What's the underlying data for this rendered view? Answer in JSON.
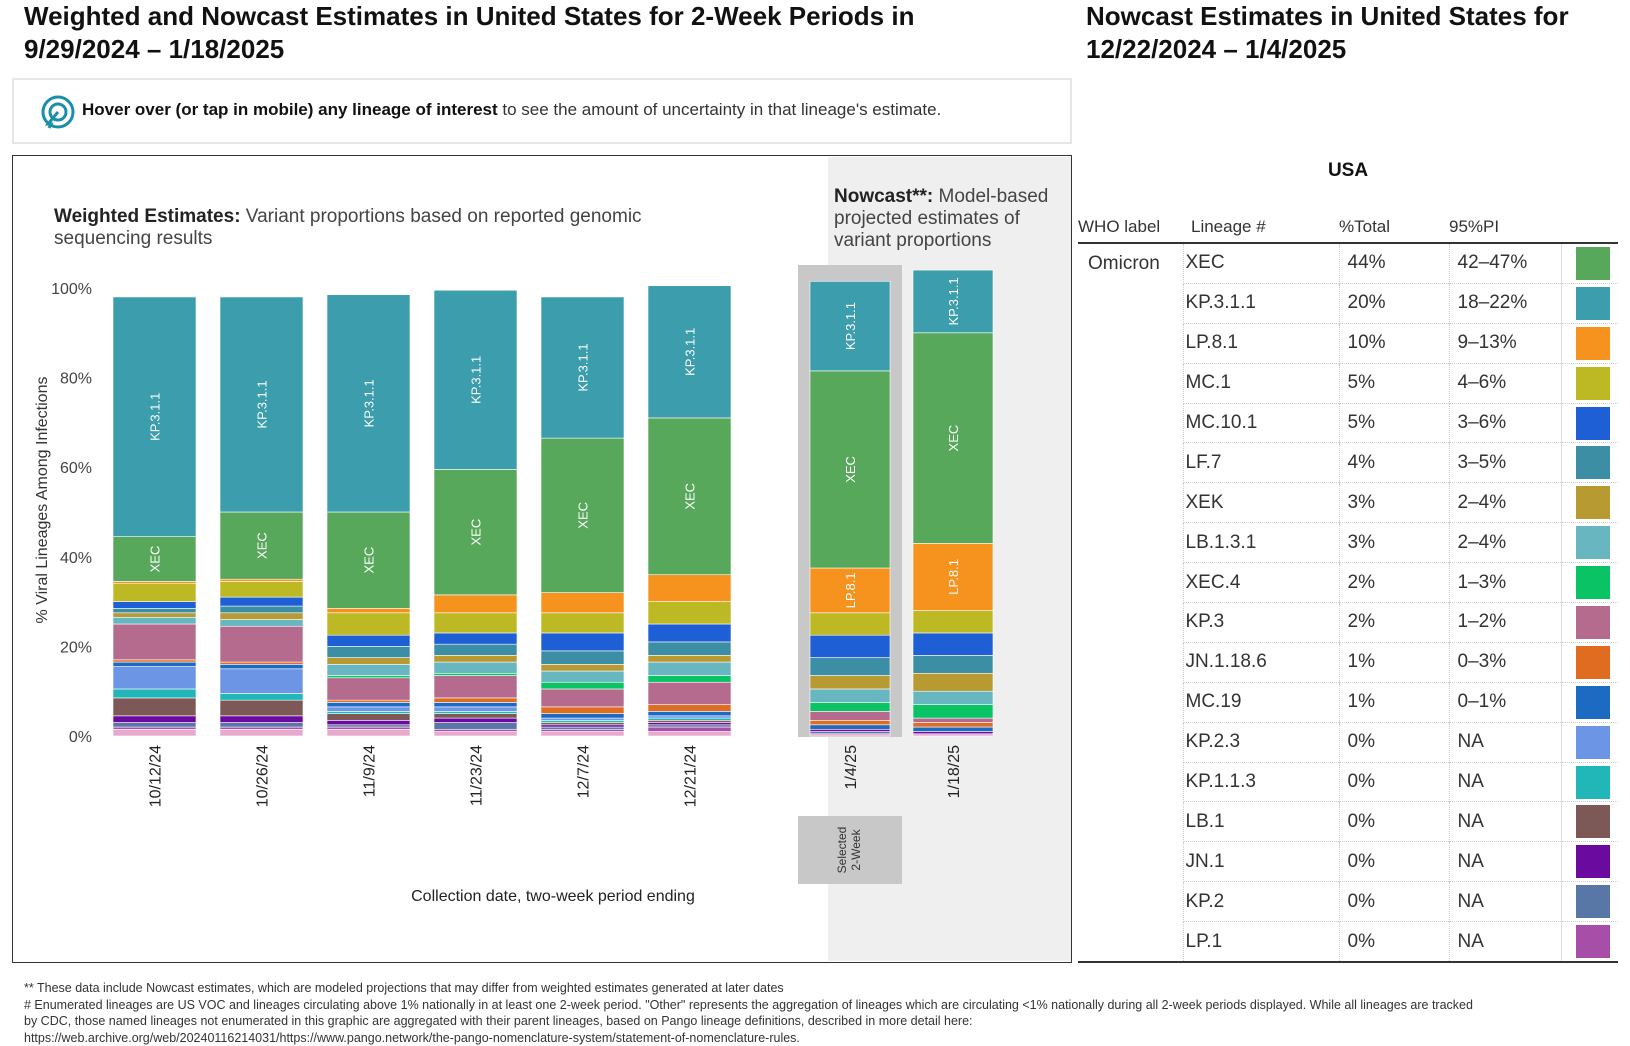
{
  "titles": {
    "left": "Weighted and Nowcast Estimates in United States for 2-Week Periods in 9/29/2024 – 1/18/2025",
    "right": "Nowcast Estimates in United States for 12/22/2024 – 1/4/2025"
  },
  "hover_note": {
    "bold": "Hover over (or tap in mobile) any lineage of interest",
    "rest": " to see the amount of uncertainty in that lineage's estimate."
  },
  "weighted_label": {
    "bold": "Weighted Estimates:",
    "rest": " Variant proportions based on reported genomic sequencing results"
  },
  "nowcast_label": {
    "bold": "Nowcast**:",
    "rest": " Model-based projected estimates of variant proportions"
  },
  "selected_label": "Selected 2-Week",
  "chart_data": {
    "type": "bar",
    "stacked": true,
    "title": "",
    "xlabel": "Collection date, two-week period ending",
    "ylabel": "% Viral Lineages Among Infections",
    "ylim": [
      0,
      100
    ],
    "yticks": [
      "0%",
      "20%",
      "40%",
      "60%",
      "80%",
      "100%"
    ],
    "categories": [
      "10/12/24",
      "10/26/24",
      "11/9/24",
      "11/23/24",
      "12/7/24",
      "12/21/24",
      "1/4/25",
      "1/18/25"
    ],
    "nowcast_categories": [
      "1/4/25",
      "1/18/25"
    ],
    "selected_category": "1/4/25",
    "colors": {
      "XEC": "#57a85b",
      "KP.3.1.1": "#3c9dac",
      "LP.8.1": "#f5931e",
      "MC.1": "#bdb925",
      "MC.10.1": "#1f5fd6",
      "LF.7": "#3b8ea3",
      "XEK": "#b89a33",
      "LB.1.3.1": "#68b7c0",
      "XEC.4": "#09c364",
      "KP.3": "#b56b8e",
      "JN.1.18.6": "#e06c22",
      "MC.19": "#1d6ac2",
      "KP.2.3": "#6d95e6",
      "KP.1.1.3": "#21b7b9",
      "LB.1": "#7c5856",
      "JN.1": "#6b0a9e",
      "KP.2": "#5877a6",
      "LP.1": "#a64ea8",
      "Other": "#e7a9cc"
    },
    "series": [
      {
        "name": "Other",
        "values": [
          1.5,
          1.5,
          1.5,
          1.0,
          1.0,
          1.0,
          0.5,
          0.5
        ]
      },
      {
        "name": "LP.1",
        "values": [
          0.5,
          0.5,
          0.5,
          0.5,
          0.5,
          1.0,
          0.0,
          0.0
        ]
      },
      {
        "name": "KP.2",
        "values": [
          1.0,
          1.0,
          0.5,
          1.5,
          0.5,
          0.5,
          0.5,
          0.0
        ]
      },
      {
        "name": "JN.1",
        "values": [
          1.5,
          1.5,
          1.0,
          1.0,
          0.5,
          0.5,
          0.5,
          0.5
        ]
      },
      {
        "name": "LB.1",
        "values": [
          4.0,
          3.5,
          1.5,
          1.0,
          0.5,
          0.5,
          0.0,
          0.0
        ]
      },
      {
        "name": "KP.1.1.3",
        "values": [
          2.0,
          1.5,
          0.5,
          0.5,
          0.5,
          0.5,
          0.0,
          0.0
        ]
      },
      {
        "name": "KP.2.3",
        "values": [
          5.0,
          5.5,
          1.0,
          1.0,
          0.5,
          0.5,
          0.0,
          0.0
        ]
      },
      {
        "name": "MC.19",
        "values": [
          1.0,
          1.0,
          1.0,
          1.0,
          1.0,
          1.0,
          1.0,
          1.0
        ]
      },
      {
        "name": "JN.1.18.6",
        "values": [
          0.5,
          0.5,
          0.5,
          1.0,
          1.5,
          1.5,
          1.0,
          1.0
        ]
      },
      {
        "name": "KP.3",
        "values": [
          8.0,
          8.0,
          5.0,
          5.0,
          4.0,
          5.0,
          2.0,
          1.0
        ]
      },
      {
        "name": "XEC.4",
        "values": [
          0.0,
          0.0,
          0.5,
          0.5,
          1.5,
          1.5,
          2.0,
          3.0
        ]
      },
      {
        "name": "LB.1.3.1",
        "values": [
          1.5,
          1.5,
          2.5,
          2.5,
          2.5,
          3.0,
          3.0,
          3.0
        ]
      },
      {
        "name": "XEK",
        "values": [
          1.0,
          1.5,
          1.5,
          1.5,
          1.5,
          1.5,
          3.0,
          4.0
        ]
      },
      {
        "name": "LF.7",
        "values": [
          1.0,
          1.5,
          2.5,
          2.5,
          3.0,
          3.0,
          4.0,
          4.0
        ]
      },
      {
        "name": "MC.10.1",
        "values": [
          1.5,
          2.0,
          2.5,
          2.5,
          4.0,
          4.0,
          5.0,
          5.0
        ]
      },
      {
        "name": "MC.1",
        "values": [
          4.0,
          3.5,
          5.0,
          4.5,
          4.5,
          5.0,
          5.0,
          5.0
        ]
      },
      {
        "name": "LP.8.1",
        "values": [
          0.5,
          0.5,
          1.0,
          4.0,
          4.5,
          6.0,
          10.0,
          15.0
        ]
      },
      {
        "name": "XEC",
        "values": [
          10.0,
          15.0,
          21.5,
          28.0,
          34.5,
          35.0,
          44.0,
          47.0
        ]
      },
      {
        "name": "KP.3.1.1",
        "values": [
          53.5,
          48.0,
          48.5,
          40.0,
          31.5,
          29.5,
          20.0,
          14.0
        ]
      }
    ],
    "bar_labels": [
      "KP.3.1.1",
      "XEC",
      "KP.3",
      "LP.8.1"
    ]
  },
  "table": {
    "region": "USA",
    "headers": [
      "WHO label",
      "Lineage #",
      "%Total",
      "95%PI"
    ],
    "who_label": "Omicron",
    "rows": [
      {
        "lineage": "XEC",
        "total": "44%",
        "pi": "42–47%"
      },
      {
        "lineage": "KP.3.1.1",
        "total": "20%",
        "pi": "18–22%"
      },
      {
        "lineage": "LP.8.1",
        "total": "10%",
        "pi": "9–13%"
      },
      {
        "lineage": "MC.1",
        "total": "5%",
        "pi": "4–6%"
      },
      {
        "lineage": "MC.10.1",
        "total": "5%",
        "pi": "3–6%"
      },
      {
        "lineage": "LF.7",
        "total": "4%",
        "pi": "3–5%"
      },
      {
        "lineage": "XEK",
        "total": "3%",
        "pi": "2–4%"
      },
      {
        "lineage": "LB.1.3.1",
        "total": "3%",
        "pi": "2–4%"
      },
      {
        "lineage": "XEC.4",
        "total": "2%",
        "pi": "1–3%"
      },
      {
        "lineage": "KP.3",
        "total": "2%",
        "pi": "1–2%"
      },
      {
        "lineage": "JN.1.18.6",
        "total": "1%",
        "pi": "0–3%"
      },
      {
        "lineage": "MC.19",
        "total": "1%",
        "pi": "0–1%"
      },
      {
        "lineage": "KP.2.3",
        "total": "0%",
        "pi": "NA"
      },
      {
        "lineage": "KP.1.1.3",
        "total": "0%",
        "pi": "NA"
      },
      {
        "lineage": "LB.1",
        "total": "0%",
        "pi": "NA"
      },
      {
        "lineage": "JN.1",
        "total": "0%",
        "pi": "NA"
      },
      {
        "lineage": "KP.2",
        "total": "0%",
        "pi": "NA"
      },
      {
        "lineage": "LP.1",
        "total": "0%",
        "pi": "NA"
      }
    ]
  },
  "footnotes": [
    "**      These data include Nowcast estimates, which are modeled projections that may differ from weighted estimates generated at later dates",
    "# Enumerated lineages are US VOC and lineages circulating above 1% nationally in at least one 2-week period. \"Other\" represents the aggregation of lineages which are circulating <1% nationally during all 2-week periods displayed.  While all lineages are tracked",
    "by CDC, those named lineages not enumerated in this graphic are aggregated with their parent lineages, based on Pango lineage definitions, described in more detail here:",
    "https://web.archive.org/web/20240116214031/https://www.pango.network/the-pango-nomenclature-system/statement-of-nomenclature-rules."
  ]
}
